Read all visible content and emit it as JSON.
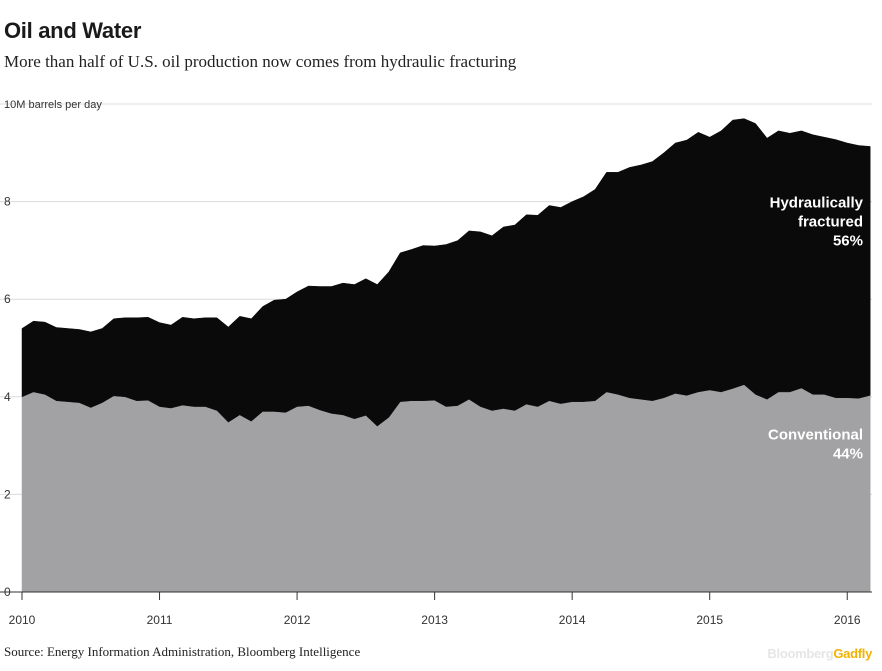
{
  "header": {
    "title": "Oil and Water",
    "subtitle": "More than half of U.S. oil production now comes from hydraulic fracturing"
  },
  "footer": {
    "source": "Source: Energy Information Administration, Bloomberg Intelligence",
    "brand_main": "Bloomberg",
    "brand_accent": "Gadfly"
  },
  "colors": {
    "fracked": "#0a0a0a",
    "conventional": "#a2a1a3",
    "brand_accent": "#f2b200"
  },
  "chart_data": {
    "type": "area",
    "stacked": true,
    "unit_label": "10M barrels per day",
    "y_ticks": [
      {
        "value": 0,
        "label": "0"
      },
      {
        "value": 2,
        "label": "2"
      },
      {
        "value": 4,
        "label": "4"
      },
      {
        "value": 6,
        "label": "6"
      },
      {
        "value": 8,
        "label": "8"
      }
    ],
    "ylim": [
      0,
      10
    ],
    "xlim": [
      2010.0,
      2016.18
    ],
    "x_ticks": [
      {
        "value": 2010,
        "label": "2010"
      },
      {
        "value": 2011,
        "label": "2011"
      },
      {
        "value": 2012,
        "label": "2012"
      },
      {
        "value": 2013,
        "label": "2013"
      },
      {
        "value": 2014,
        "label": "2014"
      },
      {
        "value": 2015,
        "label": "2015"
      },
      {
        "value": 2016,
        "label": "2016"
      }
    ],
    "grid": true,
    "x": [
      2010.0,
      2010.083,
      2010.167,
      2010.25,
      2010.333,
      2010.417,
      2010.5,
      2010.583,
      2010.667,
      2010.75,
      2010.833,
      2010.917,
      2011.0,
      2011.083,
      2011.167,
      2011.25,
      2011.333,
      2011.417,
      2011.5,
      2011.583,
      2011.667,
      2011.75,
      2011.833,
      2011.917,
      2012.0,
      2012.083,
      2012.167,
      2012.25,
      2012.333,
      2012.417,
      2012.5,
      2012.583,
      2012.667,
      2012.75,
      2012.833,
      2012.917,
      2013.0,
      2013.083,
      2013.167,
      2013.25,
      2013.333,
      2013.417,
      2013.5,
      2013.583,
      2013.667,
      2013.75,
      2013.833,
      2013.917,
      2014.0,
      2014.083,
      2014.167,
      2014.25,
      2014.333,
      2014.417,
      2014.5,
      2014.583,
      2014.667,
      2014.75,
      2014.833,
      2014.917,
      2015.0,
      2015.083,
      2015.167,
      2015.25,
      2015.333,
      2015.417,
      2015.5,
      2015.583,
      2015.667,
      2015.75,
      2015.833,
      2015.917,
      2016.0,
      2016.083,
      2016.167
    ],
    "series": [
      {
        "name": "Conventional",
        "color": "#a2a1a3",
        "values": [
          4.0,
          4.1,
          4.05,
          3.92,
          3.9,
          3.88,
          3.78,
          3.88,
          4.02,
          4.0,
          3.92,
          3.93,
          3.8,
          3.77,
          3.83,
          3.8,
          3.8,
          3.72,
          3.48,
          3.63,
          3.5,
          3.7,
          3.7,
          3.68,
          3.8,
          3.82,
          3.73,
          3.66,
          3.63,
          3.55,
          3.62,
          3.4,
          3.58,
          3.9,
          3.92,
          3.92,
          3.93,
          3.8,
          3.82,
          3.95,
          3.8,
          3.72,
          3.76,
          3.72,
          3.85,
          3.8,
          3.92,
          3.86,
          3.9,
          3.9,
          3.92,
          4.1,
          4.05,
          3.98,
          3.95,
          3.92,
          3.98,
          4.07,
          4.03,
          4.1,
          4.14,
          4.1,
          4.17,
          4.25,
          4.05,
          3.95,
          4.1,
          4.1,
          4.18,
          4.05,
          4.05,
          3.98,
          3.98,
          3.97,
          4.03
        ]
      },
      {
        "name": "Hydraulically fractured",
        "color": "#0a0a0a",
        "values": [
          1.4,
          1.45,
          1.48,
          1.5,
          1.5,
          1.5,
          1.55,
          1.52,
          1.58,
          1.62,
          1.7,
          1.7,
          1.72,
          1.7,
          1.8,
          1.8,
          1.82,
          1.9,
          1.95,
          2.02,
          2.1,
          2.15,
          2.28,
          2.32,
          2.35,
          2.45,
          2.53,
          2.6,
          2.7,
          2.75,
          2.8,
          2.9,
          2.98,
          3.05,
          3.1,
          3.18,
          3.16,
          3.32,
          3.38,
          3.45,
          3.58,
          3.58,
          3.72,
          3.8,
          3.88,
          3.92,
          4.0,
          4.02,
          4.1,
          4.2,
          4.33,
          4.5,
          4.55,
          4.72,
          4.8,
          4.9,
          5.02,
          5.13,
          5.23,
          5.32,
          5.18,
          5.35,
          5.5,
          5.45,
          5.55,
          5.35,
          5.35,
          5.3,
          5.27,
          5.32,
          5.27,
          5.29,
          5.22,
          5.18,
          5.1
        ]
      }
    ],
    "annotations": [
      {
        "lines": [
          "Hydraulically",
          "fractured"
        ],
        "value": "56%",
        "series": "Hydraulically fractured"
      },
      {
        "lines": [
          "Conventional"
        ],
        "value": "44%",
        "series": "Conventional"
      }
    ]
  }
}
